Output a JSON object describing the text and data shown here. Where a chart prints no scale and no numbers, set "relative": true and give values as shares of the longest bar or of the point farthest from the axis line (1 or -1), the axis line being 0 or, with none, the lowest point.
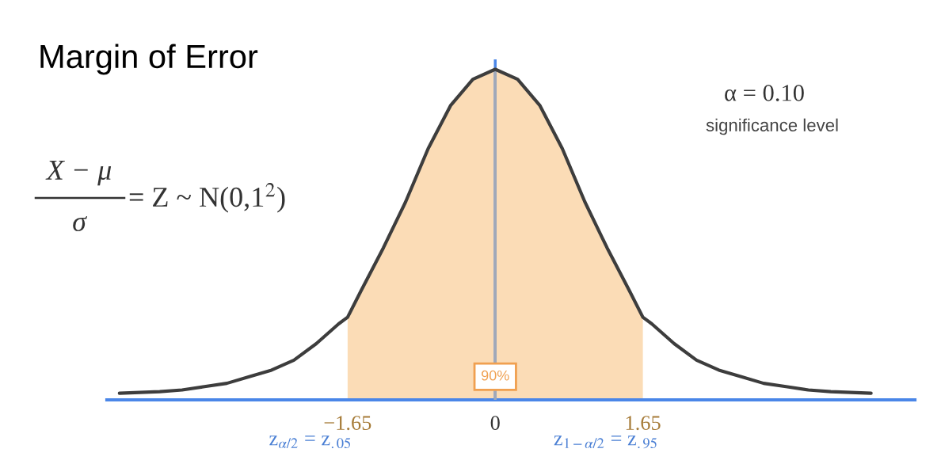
{
  "chart_data": {
    "type": "line",
    "relative": true,
    "title": "Margin of Error",
    "x": [
      -4.2,
      -3.75,
      -3.5,
      -3.25,
      -3,
      -2.75,
      -2.5,
      -2.25,
      -2,
      -1.75,
      -1.65,
      -1.5,
      -1.25,
      -1,
      -0.75,
      -0.5,
      -0.25,
      0,
      0.25,
      0.5,
      0.75,
      1,
      1.25,
      1.5,
      1.65,
      1.75,
      2,
      2.25,
      2.5,
      2.75,
      3,
      3.25,
      3.5,
      3.75,
      4.2
    ],
    "series": [
      {
        "color": "#3d3d3d",
        "values": [
          0.02,
          0.025,
          0.03,
          0.04,
          0.05,
          0.07,
          0.09,
          0.12,
          0.17,
          0.23,
          0.25,
          0.33,
          0.46,
          0.6,
          0.76,
          0.89,
          0.97,
          1,
          0.97,
          0.89,
          0.76,
          0.6,
          0.46,
          0.33,
          0.25,
          0.23,
          0.17,
          0.12,
          0.09,
          0.07,
          0.05,
          0.04,
          0.03,
          0.025,
          0.02
        ]
      }
    ],
    "xlim": [
      -4.34,
      4.69
    ],
    "xticks": [
      {
        "value": -1.65,
        "label": "−1.65"
      },
      0,
      1.65
    ],
    "tick_labels": "x",
    "bands": [
      {
        "axis": "x",
        "from": -1.65,
        "to": 1.65,
        "label": "90%",
        "color": "#fbdcb6"
      }
    ],
    "ref_lines": [
      {
        "axis": "x",
        "value": 0,
        "color": "#4a86e8"
      }
    ],
    "annotations": [
      "X − μ",
      "σ",
      "= Z ~ N(0,1$^{2}$)",
      "α = 0.10",
      "significance level",
      "z$_{α/2}$ = z$_{.05}$",
      "z$_{1−α/2}$ = z$_{.95}$"
    ],
    "grid": false,
    "legend": false,
    "marker": "none",
    "line_style": "solid"
  }
}
